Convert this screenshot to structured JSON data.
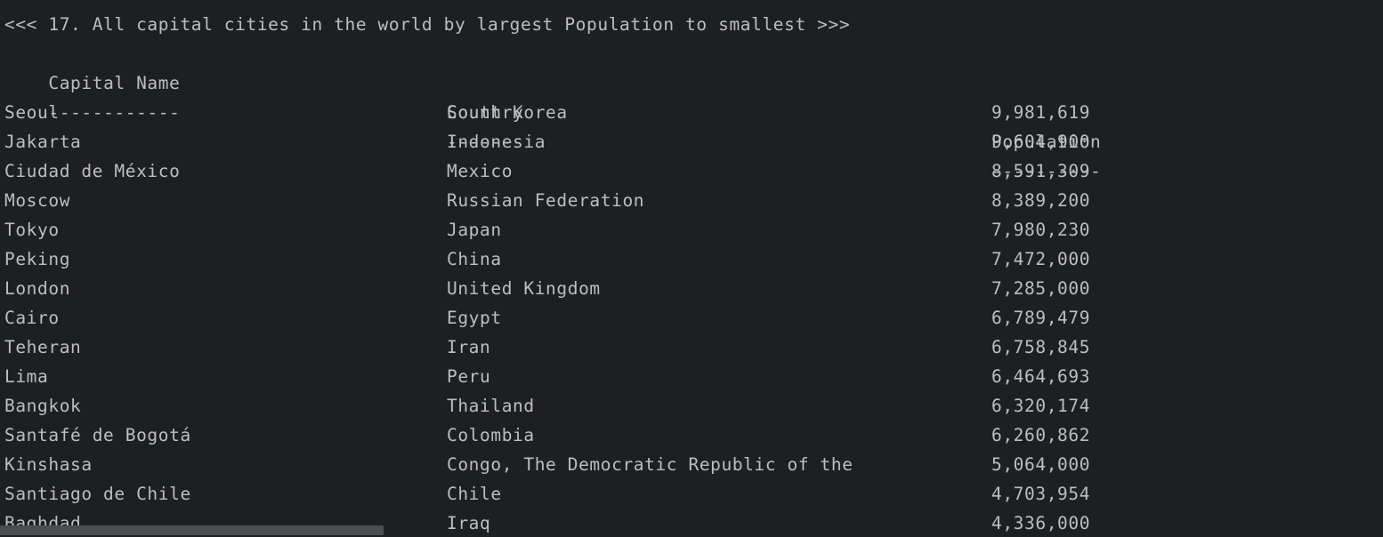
{
  "title": "<<< 17. All capital cities in the world by largest Population to smallest >>>",
  "headers": {
    "capital": "Capital Name",
    "country": "Country",
    "population": "Population"
  },
  "separators": {
    "capital": "------------",
    "country": "-------",
    "population": "----------"
  },
  "rows": [
    {
      "capital": "Seoul",
      "country": "South Korea",
      "population": "9,981,619"
    },
    {
      "capital": "Jakarta",
      "country": "Indonesia",
      "population": "9,604,900"
    },
    {
      "capital": "Ciudad de México",
      "country": "Mexico",
      "population": "8,591,309"
    },
    {
      "capital": "Moscow",
      "country": "Russian Federation",
      "population": "8,389,200"
    },
    {
      "capital": "Tokyo",
      "country": "Japan",
      "population": "7,980,230"
    },
    {
      "capital": "Peking",
      "country": "China",
      "population": "7,472,000"
    },
    {
      "capital": "London",
      "country": "United Kingdom",
      "population": "7,285,000"
    },
    {
      "capital": "Cairo",
      "country": "Egypt",
      "population": "6,789,479"
    },
    {
      "capital": "Teheran",
      "country": "Iran",
      "population": "6,758,845"
    },
    {
      "capital": "Lima",
      "country": "Peru",
      "population": "6,464,693"
    },
    {
      "capital": "Bangkok",
      "country": "Thailand",
      "population": "6,320,174"
    },
    {
      "capital": "Santafé de Bogotá",
      "country": "Colombia",
      "population": "6,260,862"
    },
    {
      "capital": "Kinshasa",
      "country": "Congo, The Democratic Republic of the",
      "population": "5,064,000"
    },
    {
      "capital": "Santiago de Chile",
      "country": "Chile",
      "population": "4,703,954"
    },
    {
      "capital": "Baghdad",
      "country": "Iraq",
      "population": "4,336,000"
    }
  ]
}
